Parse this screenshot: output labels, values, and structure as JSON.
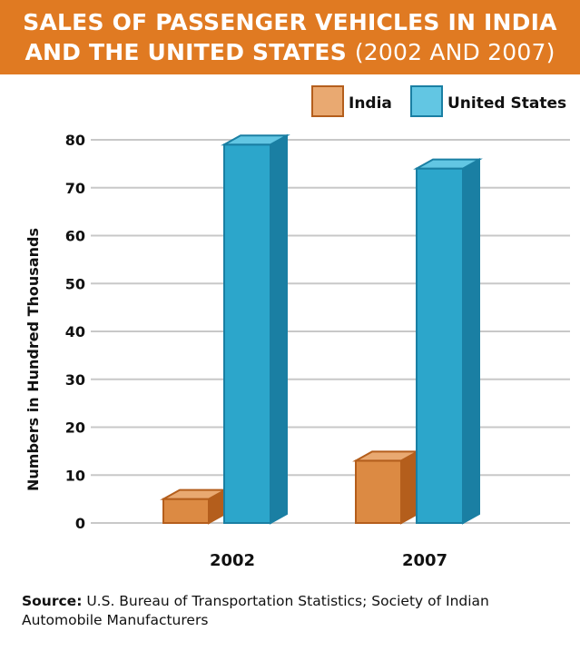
{
  "title_line1": "SALES OF PASSENGER VEHICLES IN INDIA",
  "title_line2": "AND THE UNITED STATES",
  "title_subtitle": "(2002 AND 2007)",
  "source_label": "Source:",
  "source_text": "U.S. Bureau of Transportation Statistics; Society of Indian Automobile Manufacturers",
  "colors": {
    "banner": "#e07a22",
    "india_front": "#dc8a43",
    "india_top": "#e9a971",
    "india_side": "#b45e1c",
    "us_front": "#2ca6cb",
    "us_top": "#62c6e3",
    "us_side": "#1a7fa3",
    "grid": "#c8c8c8"
  },
  "chart_data": {
    "type": "bar",
    "title": "SALES OF PASSENGER VEHICLES IN INDIA AND THE UNITED STATES (2002 AND 2007)",
    "categories": [
      "2002",
      "2007"
    ],
    "series": [
      {
        "name": "India",
        "values": [
          5,
          13
        ]
      },
      {
        "name": "United States",
        "values": [
          79,
          74
        ]
      }
    ],
    "ylabel": "Numbers in Hundred Thousands",
    "xlabel": "",
    "ylim": [
      0,
      80
    ],
    "yticks": [
      0,
      10,
      20,
      30,
      40,
      50,
      60,
      70,
      80
    ],
    "grid": true,
    "legend_position": "top-right"
  }
}
